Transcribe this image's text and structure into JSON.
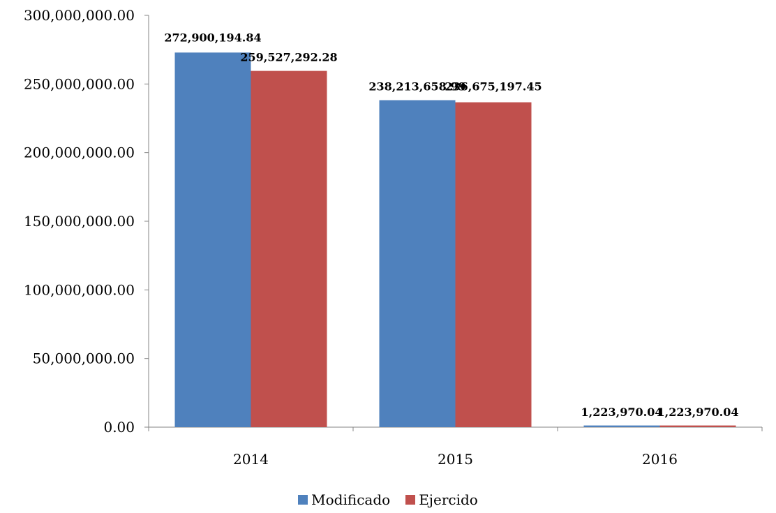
{
  "chart_data": {
    "type": "bar",
    "title": "",
    "xlabel": "",
    "ylabel": "",
    "categories": [
      "2014",
      "2015",
      "2016"
    ],
    "series": [
      {
        "name": "Modificado",
        "color": "#4F81BD",
        "values": [
          272900194.84,
          238213658.99,
          1223970.04
        ],
        "labels": [
          "272,900,194.84",
          "238,213,658.99",
          "1,223,970.04"
        ]
      },
      {
        "name": "Ejercido",
        "color": "#C0504D",
        "values": [
          259527292.28,
          236675197.45,
          1223970.04
        ],
        "labels": [
          "259,527,292.28",
          "236,675,197.45",
          "1,223,970.04"
        ]
      }
    ],
    "ylim": [
      0,
      300000000
    ],
    "yticks": [
      0,
      50000000,
      100000000,
      150000000,
      200000000,
      250000000,
      300000000
    ],
    "ytick_labels": [
      "0.00",
      "50,000,000.00",
      "100,000,000.00",
      "150,000,000.00",
      "200,000,000.00",
      "250,000,000.00",
      "300,000,000.00"
    ],
    "grid": false,
    "legend_position": "bottom"
  }
}
